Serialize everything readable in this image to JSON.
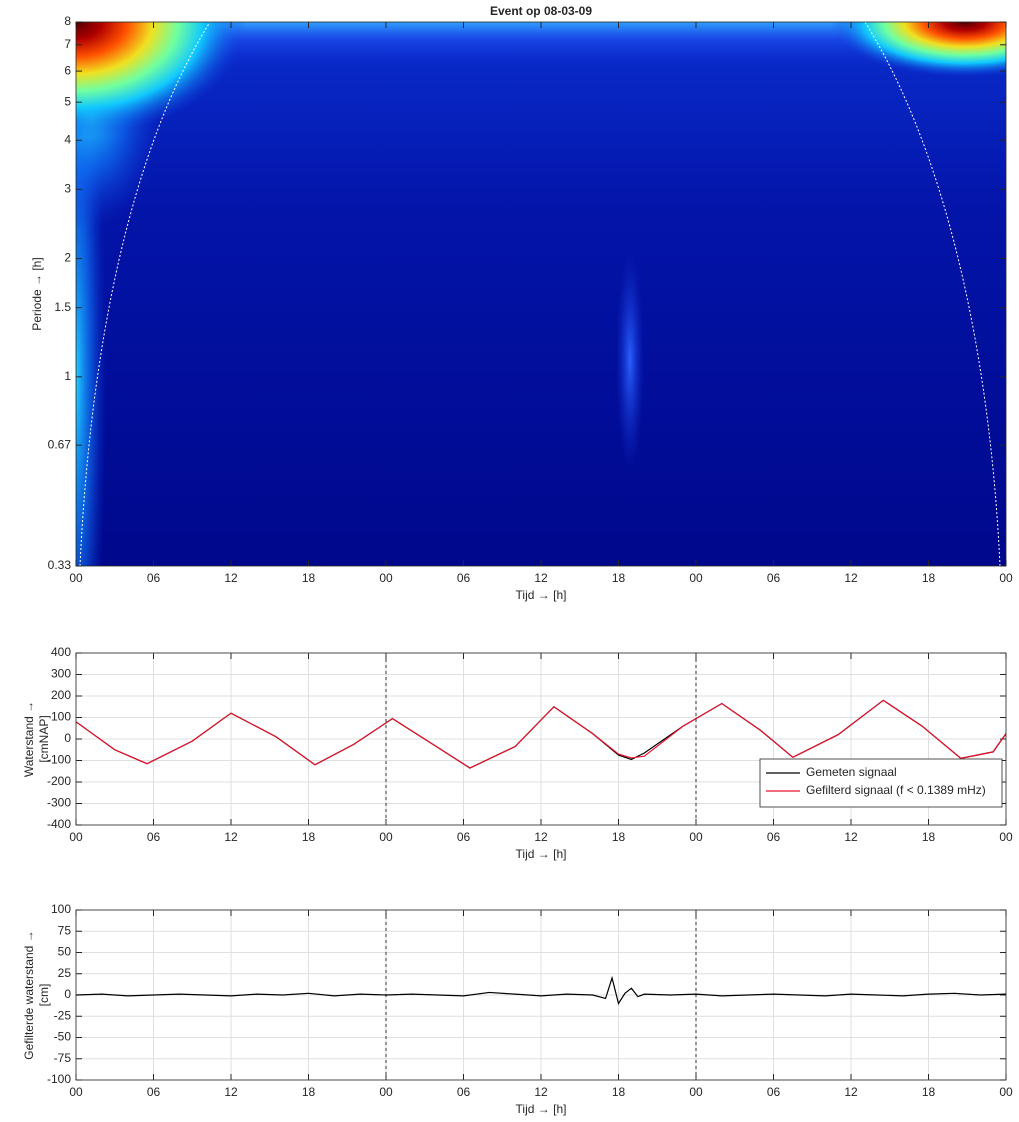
{
  "chart_data": [
    {
      "type": "scalogram",
      "title": "Event op 08-03-09",
      "xlabel": "Tijd → [h]",
      "ylabel": [
        "Periode → [h]"
      ],
      "xlim": [
        0,
        72
      ],
      "xticks": [
        {
          "value": 0,
          "label": "00"
        },
        {
          "value": 6,
          "label": "06"
        },
        {
          "value": 12,
          "label": "12"
        },
        {
          "value": 18,
          "label": "18"
        },
        {
          "value": 24,
          "label": "00"
        },
        {
          "value": 30,
          "label": "06"
        },
        {
          "value": 36,
          "label": "12"
        },
        {
          "value": 42,
          "label": "18"
        },
        {
          "value": 48,
          "label": "00"
        },
        {
          "value": 54,
          "label": "06"
        },
        {
          "value": 60,
          "label": "12"
        },
        {
          "value": 66,
          "label": "18"
        },
        {
          "value": 72,
          "label": "00"
        }
      ],
      "ylim": [
        0.33,
        8
      ],
      "ylog": true,
      "yticks": [
        0.33,
        0.67,
        1,
        1.5,
        2,
        3,
        4,
        5,
        6,
        7,
        8
      ],
      "grid": false
    },
    {
      "type": "line",
      "xlabel": "Tijd → [h]",
      "ylabel": [
        "Waterstand →",
        "[cmNAP]"
      ],
      "xlim": [
        0,
        72
      ],
      "xticks": [
        {
          "value": 0,
          "label": "00"
        },
        {
          "value": 6,
          "label": "06"
        },
        {
          "value": 12,
          "label": "12"
        },
        {
          "value": 18,
          "label": "18"
        },
        {
          "value": 24,
          "label": "00"
        },
        {
          "value": 30,
          "label": "06"
        },
        {
          "value": 36,
          "label": "12"
        },
        {
          "value": 42,
          "label": "18"
        },
        {
          "value": 48,
          "label": "00"
        },
        {
          "value": 54,
          "label": "06"
        },
        {
          "value": 60,
          "label": "12"
        },
        {
          "value": 66,
          "label": "18"
        },
        {
          "value": 72,
          "label": "00"
        }
      ],
      "ylim": [
        -400,
        400
      ],
      "yticks": [
        -400,
        -300,
        -200,
        -100,
        0,
        100,
        200,
        300,
        400
      ],
      "grid": true,
      "vlines": [
        24,
        48
      ],
      "legend": "lower right",
      "x": [
        0,
        3,
        5.5,
        9,
        12,
        15.5,
        18.5,
        21.5,
        24.5,
        27.5,
        30.5,
        34,
        37,
        40,
        42,
        43,
        44,
        47,
        50,
        53,
        55.5,
        59,
        62.5,
        65.5,
        68.5,
        71,
        72
      ],
      "series": [
        {
          "name": "Gemeten signaal",
          "color": "#000000",
          "values": [
            80,
            -50,
            -115,
            -10,
            120,
            10,
            -120,
            -25,
            95,
            -20,
            -135,
            -35,
            150,
            25,
            -75,
            -95,
            -65,
            60,
            165,
            40,
            -85,
            20,
            180,
            60,
            -90,
            -60,
            25
          ]
        },
        {
          "name": "Gefilterd signaal (f < 0.1389 mHz)",
          "color": "#e8132c",
          "values": [
            80,
            -50,
            -115,
            -10,
            120,
            10,
            -120,
            -25,
            95,
            -20,
            -135,
            -35,
            150,
            25,
            -70,
            -88,
            -80,
            60,
            165,
            40,
            -85,
            20,
            180,
            60,
            -90,
            -60,
            25
          ]
        }
      ]
    },
    {
      "type": "line",
      "xlabel": "Tijd → [h]",
      "ylabel": [
        "Gefilterde waterstand →",
        "[cm]"
      ],
      "xlim": [
        0,
        72
      ],
      "xticks": [
        {
          "value": 0,
          "label": "00"
        },
        {
          "value": 6,
          "label": "06"
        },
        {
          "value": 12,
          "label": "12"
        },
        {
          "value": 18,
          "label": "18"
        },
        {
          "value": 24,
          "label": "00"
        },
        {
          "value": 30,
          "label": "06"
        },
        {
          "value": 36,
          "label": "12"
        },
        {
          "value": 42,
          "label": "18"
        },
        {
          "value": 48,
          "label": "00"
        },
        {
          "value": 54,
          "label": "06"
        },
        {
          "value": 60,
          "label": "12"
        },
        {
          "value": 66,
          "label": "18"
        },
        {
          "value": 72,
          "label": "00"
        }
      ],
      "ylim": [
        -100,
        100
      ],
      "yticks": [
        -100,
        -75,
        -50,
        -25,
        0,
        25,
        50,
        75,
        100
      ],
      "grid": true,
      "vlines": [
        24,
        48
      ],
      "x": [
        0,
        2,
        4,
        6,
        8,
        10,
        12,
        14,
        16,
        18,
        20,
        22,
        24,
        26,
        28,
        30,
        32,
        34,
        36,
        38,
        40,
        41,
        41.5,
        42,
        42.5,
        43,
        43.5,
        44,
        46,
        48,
        50,
        52,
        54,
        56,
        58,
        60,
        62,
        64,
        66,
        68,
        70,
        72
      ],
      "series": [
        {
          "color": "#000000",
          "values": [
            0,
            1,
            -1,
            0,
            1,
            0,
            -1,
            1,
            0,
            2,
            -1,
            1,
            0,
            1,
            0,
            -1,
            3,
            1,
            -1,
            1,
            0,
            -4,
            20,
            -10,
            2,
            8,
            -2,
            1,
            0,
            1,
            -1,
            0,
            1,
            0,
            -1,
            1,
            0,
            -1,
            1,
            2,
            0,
            1
          ]
        }
      ]
    }
  ]
}
